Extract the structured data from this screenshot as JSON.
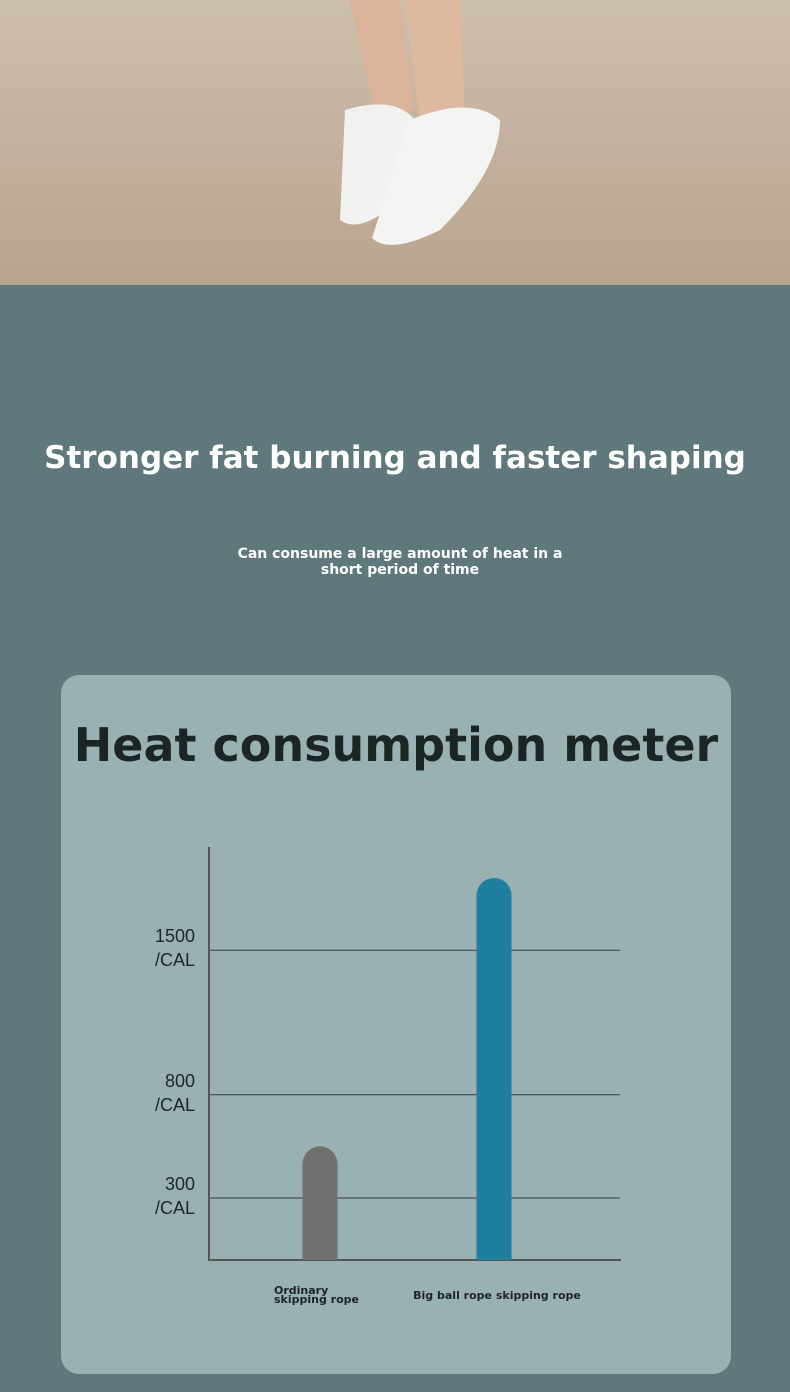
{
  "headline": "Stronger fat burning and faster shaping",
  "subheadline": "Can consume a large amount of heat in a short period of time",
  "chart_data": {
    "type": "bar",
    "title": "Heat consumption meter",
    "categories": [
      "Ordinary skipping rope",
      "Big ball rope skipping rope"
    ],
    "values": [
      550,
      1850
    ],
    "colors": [
      "#707070",
      "#1f7f9f"
    ],
    "ylim": [
      0,
      2000
    ],
    "yticks": [
      {
        "value": 300,
        "label": "300 /CAL"
      },
      {
        "value": 800,
        "label": "800 /CAL"
      },
      {
        "value": 1500,
        "label": "1500 /CAL"
      }
    ],
    "grid": true
  }
}
